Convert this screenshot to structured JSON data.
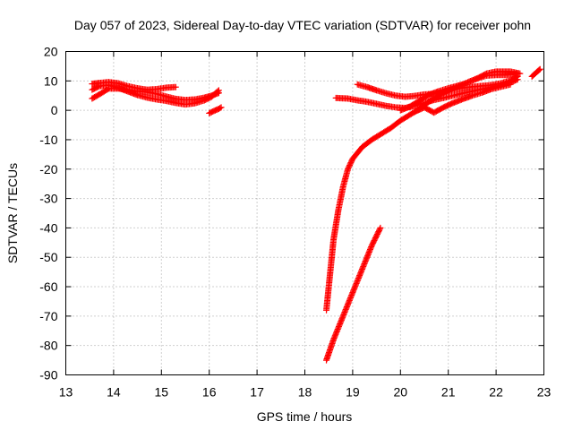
{
  "chart_data": {
    "type": "scatter",
    "title": "Day 057 of 2023, Sidereal Day-to-day VTEC variation (SDTVAR) for receiver pohn",
    "xlabel": "GPS time / hours",
    "ylabel": "SDTVAR / TECUs",
    "xlim": [
      13,
      23
    ],
    "ylim": [
      -90,
      20
    ],
    "xticks": [
      13,
      14,
      15,
      16,
      17,
      18,
      19,
      20,
      21,
      22,
      23
    ],
    "yticks": [
      -90,
      -80,
      -70,
      -60,
      -50,
      -40,
      -30,
      -20,
      -10,
      0,
      10,
      20
    ],
    "grid": true,
    "marker": "+",
    "marker_color": "#ff0000",
    "series": [
      {
        "points": [
          [
            13.55,
            9.0
          ],
          [
            13.7,
            9.3
          ],
          [
            13.9,
            9.6
          ],
          [
            14.1,
            9.2
          ],
          [
            14.3,
            8.2
          ],
          [
            14.5,
            7.5
          ],
          [
            14.7,
            7.0
          ],
          [
            14.9,
            7.2
          ],
          [
            15.1,
            7.7
          ],
          [
            15.3,
            7.9
          ]
        ]
      },
      {
        "points": [
          [
            13.55,
            7.0
          ],
          [
            13.7,
            8.2
          ],
          [
            13.9,
            8.6
          ],
          [
            14.1,
            7.6
          ],
          [
            14.3,
            6.4
          ],
          [
            14.5,
            5.2
          ],
          [
            14.7,
            4.3
          ],
          [
            14.9,
            3.7
          ],
          [
            15.1,
            3.2
          ],
          [
            15.3,
            2.5
          ],
          [
            15.5,
            2.0
          ],
          [
            15.7,
            2.4
          ],
          [
            15.9,
            3.4
          ],
          [
            16.05,
            4.6
          ],
          [
            16.2,
            6.8
          ]
        ]
      },
      {
        "points": [
          [
            13.55,
            4.0
          ],
          [
            13.7,
            5.4
          ],
          [
            13.9,
            7.4
          ],
          [
            14.1,
            7.4
          ],
          [
            14.3,
            7.0
          ],
          [
            14.5,
            6.5
          ],
          [
            14.7,
            6.2
          ],
          [
            14.9,
            5.6
          ],
          [
            15.1,
            4.7
          ],
          [
            15.3,
            3.9
          ],
          [
            15.5,
            3.5
          ],
          [
            15.7,
            3.7
          ],
          [
            15.9,
            4.3
          ],
          [
            16.05,
            5.0
          ],
          [
            16.2,
            5.9
          ]
        ]
      },
      {
        "points": [
          [
            16.0,
            -1.0
          ],
          [
            16.1,
            -0.2
          ],
          [
            16.2,
            0.5
          ],
          [
            16.25,
            1.0
          ]
        ]
      },
      {
        "points": [
          [
            18.45,
            -68.0
          ],
          [
            18.5,
            -60.0
          ],
          [
            18.55,
            -52.0
          ],
          [
            18.6,
            -44.0
          ],
          [
            18.7,
            -34.0
          ],
          [
            18.8,
            -26.0
          ],
          [
            18.9,
            -20.0
          ],
          [
            19.0,
            -16.5
          ],
          [
            19.2,
            -12.5
          ],
          [
            19.4,
            -10.0
          ],
          [
            19.6,
            -8.0
          ],
          [
            19.8,
            -6.0
          ],
          [
            20.0,
            -3.5
          ],
          [
            20.2,
            -1.5
          ],
          [
            20.4,
            0.5
          ],
          [
            20.6,
            3.0
          ],
          [
            20.8,
            5.0
          ],
          [
            21.0,
            6.8
          ],
          [
            21.3,
            8.8
          ],
          [
            21.6,
            10.8
          ],
          [
            21.8,
            12.5
          ],
          [
            22.0,
            13.2
          ],
          [
            22.3,
            13.2
          ],
          [
            22.5,
            12.5
          ]
        ]
      },
      {
        "points": [
          [
            18.45,
            -85.0
          ],
          [
            18.6,
            -78.0
          ],
          [
            18.8,
            -70.0
          ],
          [
            19.0,
            -62.0
          ],
          [
            19.2,
            -54.0
          ],
          [
            19.4,
            -46.0
          ],
          [
            19.58,
            -40.0
          ]
        ]
      },
      {
        "points": [
          [
            18.65,
            4.2
          ],
          [
            18.9,
            4.0
          ],
          [
            19.1,
            3.4
          ],
          [
            19.3,
            2.9
          ],
          [
            19.5,
            2.2
          ],
          [
            19.7,
            1.5
          ],
          [
            19.9,
            1.0
          ],
          [
            20.1,
            0.8
          ],
          [
            20.3,
            1.5
          ],
          [
            20.5,
            2.5
          ],
          [
            20.7,
            3.5
          ],
          [
            20.9,
            4.2
          ],
          [
            21.1,
            5.0
          ],
          [
            21.3,
            5.8
          ],
          [
            21.5,
            6.5
          ],
          [
            21.7,
            7.2
          ],
          [
            21.9,
            7.8
          ],
          [
            22.1,
            8.5
          ],
          [
            22.3,
            9.5
          ],
          [
            22.45,
            10.5
          ]
        ]
      },
      {
        "points": [
          [
            19.1,
            8.8
          ],
          [
            19.3,
            7.9
          ],
          [
            19.5,
            6.8
          ],
          [
            19.7,
            5.8
          ],
          [
            19.9,
            5.0
          ],
          [
            20.1,
            4.6
          ],
          [
            20.3,
            4.9
          ],
          [
            20.5,
            5.4
          ],
          [
            20.7,
            5.6
          ],
          [
            20.9,
            6.2
          ],
          [
            21.1,
            7.0
          ],
          [
            21.3,
            7.6
          ],
          [
            21.5,
            8.0
          ],
          [
            21.7,
            8.3
          ],
          [
            21.9,
            8.6
          ],
          [
            22.1,
            9.2
          ],
          [
            22.3,
            10.2
          ],
          [
            22.45,
            11.5
          ]
        ]
      },
      {
        "points": [
          [
            20.0,
            0.0
          ],
          [
            20.2,
            1.3
          ],
          [
            20.4,
            3.3
          ],
          [
            20.6,
            5.3
          ],
          [
            20.8,
            6.5
          ],
          [
            21.0,
            7.5
          ],
          [
            21.3,
            8.8
          ],
          [
            21.6,
            10.8
          ],
          [
            21.8,
            11.8
          ],
          [
            22.0,
            12.0
          ],
          [
            22.2,
            12.0
          ],
          [
            22.45,
            12.5
          ]
        ]
      },
      {
        "points": [
          [
            20.3,
            -0.5
          ],
          [
            20.5,
            1.0
          ],
          [
            20.7,
            -0.8
          ],
          [
            20.9,
            1.0
          ],
          [
            21.1,
            2.5
          ],
          [
            21.3,
            3.8
          ],
          [
            21.5,
            5.0
          ],
          [
            21.7,
            6.0
          ],
          [
            21.9,
            7.2
          ],
          [
            22.1,
            8.0
          ],
          [
            22.3,
            8.8
          ]
        ]
      },
      {
        "points": [
          [
            22.75,
            11.5
          ],
          [
            22.85,
            13.0
          ],
          [
            22.92,
            14.0
          ]
        ]
      }
    ]
  }
}
